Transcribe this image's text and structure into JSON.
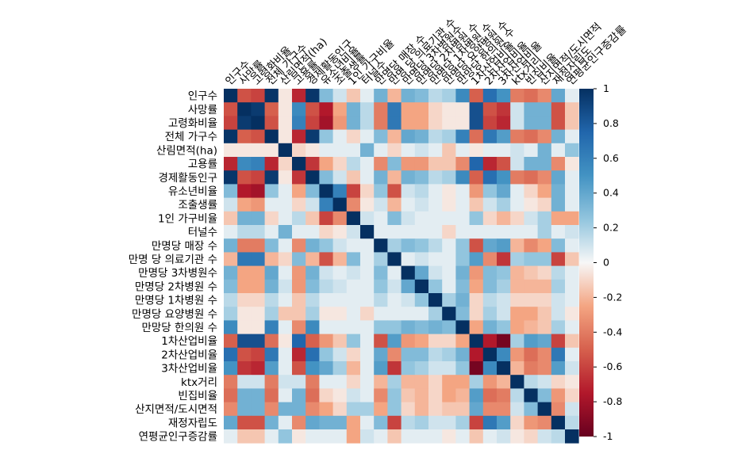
{
  "chart_data": {
    "type": "heatmap",
    "title": "",
    "variables": [
      "인구수",
      "사망률",
      "고령화비율",
      "전체 가구수",
      "산림면적(ha)",
      "고용률",
      "경제활동인구",
      "유소년비율",
      "조출생률",
      "1인 가구비율",
      "터널수",
      "만명당 매장 수",
      "만명 당 의료기관 수",
      "만명당 3차병원수",
      "만명당 2차병원 수",
      "만명당 1차병원 수",
      "만명당 요양병원 수",
      "만망당 한의원 수",
      "1차산업비율",
      "2차산업비율",
      "3차산업비율",
      "ktx거리",
      "빈집비율",
      "산지면적/도시면적",
      "재정자립도",
      "연평균인구증감률"
    ],
    "matrix": [
      [
        1,
        -0.55,
        -0.6,
        0.98,
        -0.05,
        -0.7,
        0.97,
        0.3,
        0.1,
        -0.15,
        0.05,
        0.35,
        -0.2,
        0.35,
        0.3,
        0.15,
        0.2,
        0.55,
        -0.5,
        0.7,
        0.5,
        -0.4,
        -0.45,
        -0.35,
        0.4,
        0.05
      ],
      [
        -0.55,
        1,
        0.95,
        -0.5,
        -0.05,
        0.55,
        -0.55,
        -0.75,
        -0.25,
        0.35,
        0.15,
        -0.4,
        0.65,
        -0.25,
        -0.25,
        -0.1,
        -0.05,
        -0.05,
        0.85,
        -0.55,
        -0.65,
        0.1,
        0.35,
        0.35,
        -0.55,
        -0.15
      ],
      [
        -0.6,
        0.95,
        1,
        -0.55,
        -0.05,
        0.6,
        -0.6,
        -0.8,
        -0.3,
        0.35,
        0.15,
        -0.4,
        0.65,
        -0.25,
        -0.25,
        -0.1,
        -0.05,
        -0.05,
        0.85,
        -0.6,
        -0.7,
        0.1,
        0.35,
        0.35,
        -0.55,
        -0.15
      ],
      [
        0.98,
        -0.5,
        -0.55,
        1,
        -0.05,
        -0.7,
        0.95,
        0.25,
        0.05,
        -0.1,
        0.05,
        0.3,
        -0.2,
        0.4,
        0.35,
        0.15,
        0.2,
        0.6,
        -0.45,
        0.65,
        0.45,
        -0.4,
        -0.45,
        -0.35,
        0.35,
        0.05
      ],
      [
        -0.05,
        -0.05,
        -0.05,
        -0.05,
        1,
        -0.1,
        -0.05,
        0.05,
        0.05,
        0.05,
        0.35,
        0.05,
        -0.1,
        0.05,
        0.1,
        0.05,
        -0.15,
        0.05,
        -0.05,
        0.05,
        0.05,
        0.1,
        0.05,
        0.35,
        0.05,
        0.25
      ],
      [
        -0.7,
        0.55,
        0.6,
        -0.7,
        -0.1,
        1,
        -0.65,
        -0.25,
        -0.1,
        0.15,
        0.05,
        -0.35,
        0.3,
        -0.3,
        -0.3,
        -0.15,
        -0.15,
        -0.35,
        0.75,
        -0.7,
        -0.55,
        0.1,
        0.35,
        0.35,
        -0.35,
        -0.05
      ],
      [
        0.97,
        -0.55,
        -0.6,
        0.95,
        -0.05,
        -0.65,
        1,
        0.3,
        0.1,
        -0.15,
        0.05,
        0.35,
        -0.2,
        0.35,
        0.3,
        0.15,
        0.2,
        0.55,
        -0.5,
        0.7,
        0.5,
        -0.4,
        -0.45,
        -0.35,
        0.4,
        0.05
      ],
      [
        0.3,
        -0.75,
        -0.8,
        0.25,
        0.05,
        -0.25,
        0.3,
        1,
        0.6,
        -0.6,
        -0.1,
        0.25,
        -0.55,
        0.1,
        0.15,
        0.05,
        -0.05,
        0.05,
        -0.3,
        0.25,
        0.4,
        0.05,
        -0.1,
        -0.25,
        0.35,
        0.05
      ],
      [
        0.1,
        -0.25,
        -0.3,
        0.05,
        0.05,
        -0.1,
        0.1,
        0.6,
        1,
        -0.35,
        -0.05,
        0.1,
        -0.2,
        0.05,
        0.1,
        0.05,
        -0.05,
        0.05,
        -0.15,
        0.1,
        0.2,
        0.05,
        -0.05,
        -0.1,
        0.35,
        0.05
      ],
      [
        -0.15,
        0.35,
        0.35,
        -0.1,
        0.05,
        0.15,
        -0.15,
        -0.6,
        -0.35,
        1,
        0.1,
        0.05,
        0.3,
        0.1,
        0.05,
        0.05,
        0.05,
        0.05,
        0.25,
        -0.1,
        -0.2,
        -0.1,
        0.1,
        0.2,
        -0.25,
        -0.25
      ],
      [
        0.05,
        0.15,
        0.15,
        0.05,
        0.35,
        0.05,
        0.05,
        -0.1,
        -0.05,
        0.1,
        1,
        0.05,
        0.05,
        0.05,
        0.05,
        0.05,
        -0.1,
        0.05,
        0.05,
        0.05,
        0.05,
        0.05,
        0.05,
        0.2,
        0.05,
        0.1
      ],
      [
        0.35,
        -0.4,
        -0.4,
        0.3,
        0.05,
        -0.35,
        0.35,
        0.25,
        0.1,
        0.05,
        0.05,
        1,
        0.2,
        0.3,
        0.25,
        0.15,
        0.05,
        0.25,
        -0.55,
        0.4,
        0.45,
        -0.2,
        -0.35,
        -0.25,
        0.3,
        0.05
      ],
      [
        -0.2,
        0.65,
        0.65,
        -0.2,
        -0.1,
        0.3,
        -0.2,
        -0.55,
        -0.2,
        0.3,
        0.05,
        0.2,
        1,
        0.05,
        0.1,
        0.05,
        0.05,
        0.25,
        0.45,
        -0.35,
        -0.65,
        0.2,
        0.25,
        0.25,
        -0.6,
        -0.15
      ],
      [
        0.35,
        -0.25,
        -0.25,
        0.4,
        0.05,
        -0.3,
        0.35,
        0.1,
        0.05,
        0.1,
        0.05,
        0.3,
        0.05,
        1,
        0.4,
        0.1,
        0.05,
        0.35,
        -0.3,
        0.3,
        0.25,
        -0.2,
        -0.15,
        -0.1,
        0.15,
        0.05
      ],
      [
        0.3,
        -0.25,
        -0.25,
        0.35,
        0.1,
        -0.3,
        0.3,
        0.15,
        0.1,
        0.05,
        0.05,
        0.25,
        0.1,
        0.4,
        1,
        0.25,
        0.05,
        0.3,
        -0.25,
        0.3,
        0.2,
        -0.2,
        -0.2,
        -0.2,
        0.2,
        0.05
      ],
      [
        0.15,
        -0.1,
        -0.1,
        0.15,
        0.05,
        -0.15,
        0.15,
        0.05,
        0.05,
        0.05,
        0.05,
        0.15,
        0.05,
        0.1,
        0.25,
        1,
        0.2,
        0.35,
        -0.1,
        0.15,
        0.1,
        -0.1,
        -0.1,
        -0.1,
        0.1,
        0.05
      ],
      [
        0.2,
        -0.05,
        -0.05,
        0.2,
        -0.15,
        -0.15,
        0.2,
        -0.05,
        -0.05,
        0.05,
        -0.1,
        0.05,
        0.05,
        0.05,
        0.05,
        0.2,
        1,
        0.3,
        -0.1,
        0.2,
        0.1,
        -0.25,
        -0.25,
        -0.15,
        0.1,
        -0.05
      ],
      [
        0.55,
        -0.05,
        -0.05,
        0.6,
        0.05,
        -0.35,
        0.55,
        0.05,
        0.05,
        0.05,
        0.05,
        0.25,
        0.25,
        0.35,
        0.3,
        0.35,
        0.3,
        1,
        -0.25,
        0.35,
        0.25,
        -0.25,
        -0.2,
        -0.15,
        0.2,
        0.05
      ],
      [
        -0.5,
        0.85,
        0.85,
        -0.45,
        -0.05,
        0.75,
        -0.5,
        -0.3,
        -0.15,
        0.25,
        0.05,
        -0.55,
        0.45,
        -0.3,
        -0.25,
        -0.1,
        -0.1,
        -0.25,
        1,
        -0.75,
        -0.95,
        0.2,
        0.45,
        0.4,
        -0.6,
        -0.15
      ],
      [
        0.7,
        -0.55,
        -0.6,
        0.65,
        0.05,
        -0.7,
        0.7,
        0.25,
        0.1,
        -0.1,
        0.05,
        0.4,
        -0.35,
        0.3,
        0.3,
        0.15,
        0.2,
        0.35,
        -0.75,
        1,
        0.55,
        -0.3,
        -0.45,
        -0.35,
        0.65,
        0.05
      ],
      [
        0.5,
        -0.65,
        -0.7,
        0.45,
        0.05,
        -0.55,
        0.5,
        0.4,
        0.2,
        -0.2,
        0.05,
        0.45,
        -0.65,
        0.25,
        0.2,
        0.1,
        0.1,
        0.25,
        -0.95,
        0.55,
        1,
        -0.2,
        -0.4,
        -0.35,
        0.45,
        0.1
      ],
      [
        -0.4,
        0.1,
        0.1,
        -0.4,
        0.1,
        0.1,
        -0.4,
        0.05,
        0.05,
        -0.1,
        0.05,
        -0.2,
        0.2,
        -0.2,
        -0.2,
        -0.1,
        -0.25,
        -0.25,
        0.2,
        -0.3,
        -0.2,
        1,
        0.15,
        0.1,
        -0.1,
        -0.05
      ],
      [
        -0.45,
        0.35,
        0.35,
        -0.45,
        0.05,
        0.35,
        -0.45,
        -0.1,
        -0.05,
        0.1,
        0.05,
        -0.35,
        0.25,
        -0.15,
        -0.2,
        -0.1,
        -0.25,
        -0.2,
        0.45,
        -0.45,
        -0.4,
        0.15,
        1,
        0.3,
        -0.3,
        -0.1
      ],
      [
        -0.35,
        0.35,
        0.35,
        -0.35,
        0.35,
        0.35,
        -0.35,
        -0.25,
        -0.1,
        0.2,
        0.2,
        -0.25,
        0.25,
        -0.1,
        -0.2,
        -0.1,
        -0.15,
        -0.15,
        0.4,
        -0.35,
        -0.35,
        0.1,
        0.3,
        1,
        -0.35,
        0.1
      ],
      [
        0.4,
        -0.55,
        -0.55,
        0.35,
        0.05,
        -0.35,
        0.4,
        0.35,
        0.35,
        -0.25,
        0.05,
        0.3,
        -0.6,
        0.15,
        0.2,
        0.1,
        0.1,
        0.2,
        -0.6,
        0.65,
        0.45,
        -0.1,
        -0.3,
        -0.35,
        1,
        0.15
      ],
      [
        0.05,
        -0.15,
        -0.15,
        0.05,
        0.25,
        -0.05,
        0.05,
        0.05,
        0.05,
        -0.25,
        0.1,
        0.05,
        -0.15,
        0.05,
        0.05,
        0.05,
        -0.05,
        0.05,
        -0.15,
        0.05,
        0.1,
        -0.05,
        -0.1,
        0.1,
        0.15,
        1
      ]
    ],
    "colorbar": {
      "min": -1,
      "max": 1,
      "ticks": [
        "1",
        "0.8",
        "0.6",
        "0.4",
        "0.2",
        "0",
        "-0.2",
        "-0.4",
        "-0.6",
        "-0.8",
        "-1"
      ]
    },
    "colormap": "RdBu",
    "colors": {
      "neg_strong": "#67001f",
      "neg": "#d6604d",
      "neutral": "#f7f7f7",
      "pos": "#4393c3",
      "pos_strong": "#053061"
    }
  }
}
